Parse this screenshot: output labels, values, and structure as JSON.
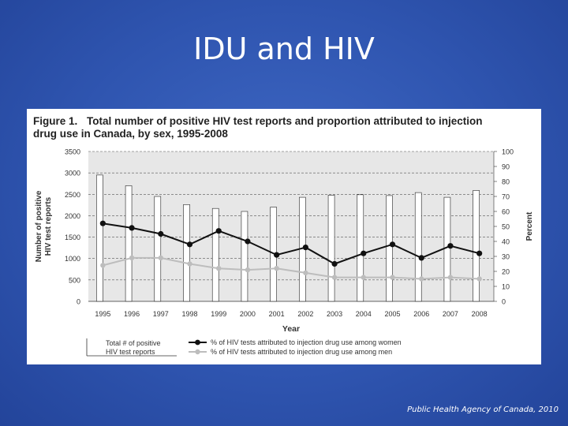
{
  "slide": {
    "title": "IDU and HIV",
    "credit": "Public Health Agency of Canada, 2010"
  },
  "figure": {
    "label": "Figure 1.",
    "caption_line1": "Total number of positive HIV test reports and proportion attributed to injection",
    "caption_line2": "drug use in Canada, by sex, 1995-2008"
  },
  "colors": {
    "background": "#2f55b0",
    "women_line": "#111111",
    "men_line": "#bdbdbd",
    "bar_fill": "#ffffff"
  },
  "chart_data": {
    "type": "bar",
    "categories": [
      "1995",
      "1996",
      "1997",
      "1998",
      "1999",
      "2000",
      "2001",
      "2002",
      "2003",
      "2004",
      "2005",
      "2006",
      "2007",
      "2008"
    ],
    "xlabel": "Year",
    "ylabel": "Number of positive HIV test reports",
    "ylabel_lines": [
      "Number of positive",
      "HIV test reports"
    ],
    "y2label": "Percent",
    "ylim": [
      0,
      3500
    ],
    "y2lim": [
      0,
      100
    ],
    "yticks": [
      0,
      500,
      1000,
      1500,
      2000,
      2500,
      3000,
      3500
    ],
    "y2ticks": [
      0,
      10,
      20,
      30,
      40,
      50,
      60,
      70,
      80,
      90,
      100
    ],
    "grid": "dashed horizontal",
    "series": [
      {
        "name": "Total # of positive HIV test reports",
        "kind": "bar",
        "axis": "left",
        "values": [
          2950,
          2700,
          2450,
          2260,
          2170,
          2100,
          2200,
          2430,
          2480,
          2490,
          2470,
          2540,
          2430,
          2590
        ]
      },
      {
        "name": "% of HIV tests attributed to injection drug use among women",
        "kind": "line",
        "axis": "right",
        "values": [
          52,
          49,
          45,
          38,
          47,
          40,
          31,
          36,
          25,
          32,
          38,
          29,
          37,
          32
        ]
      },
      {
        "name": "% of HIV tests attributed to injection drug use among men",
        "kind": "line",
        "axis": "right",
        "values": [
          24,
          29,
          29,
          25,
          22,
          21,
          22,
          19,
          16,
          16,
          16,
          15,
          16,
          15
        ]
      }
    ],
    "legend": {
      "bars_lines": [
        "Total # of positive",
        "HIV test reports"
      ],
      "women": "% of HIV tests attributed to injection drug use among women",
      "men": "% of HIV tests attributed to injection drug use among men"
    }
  }
}
